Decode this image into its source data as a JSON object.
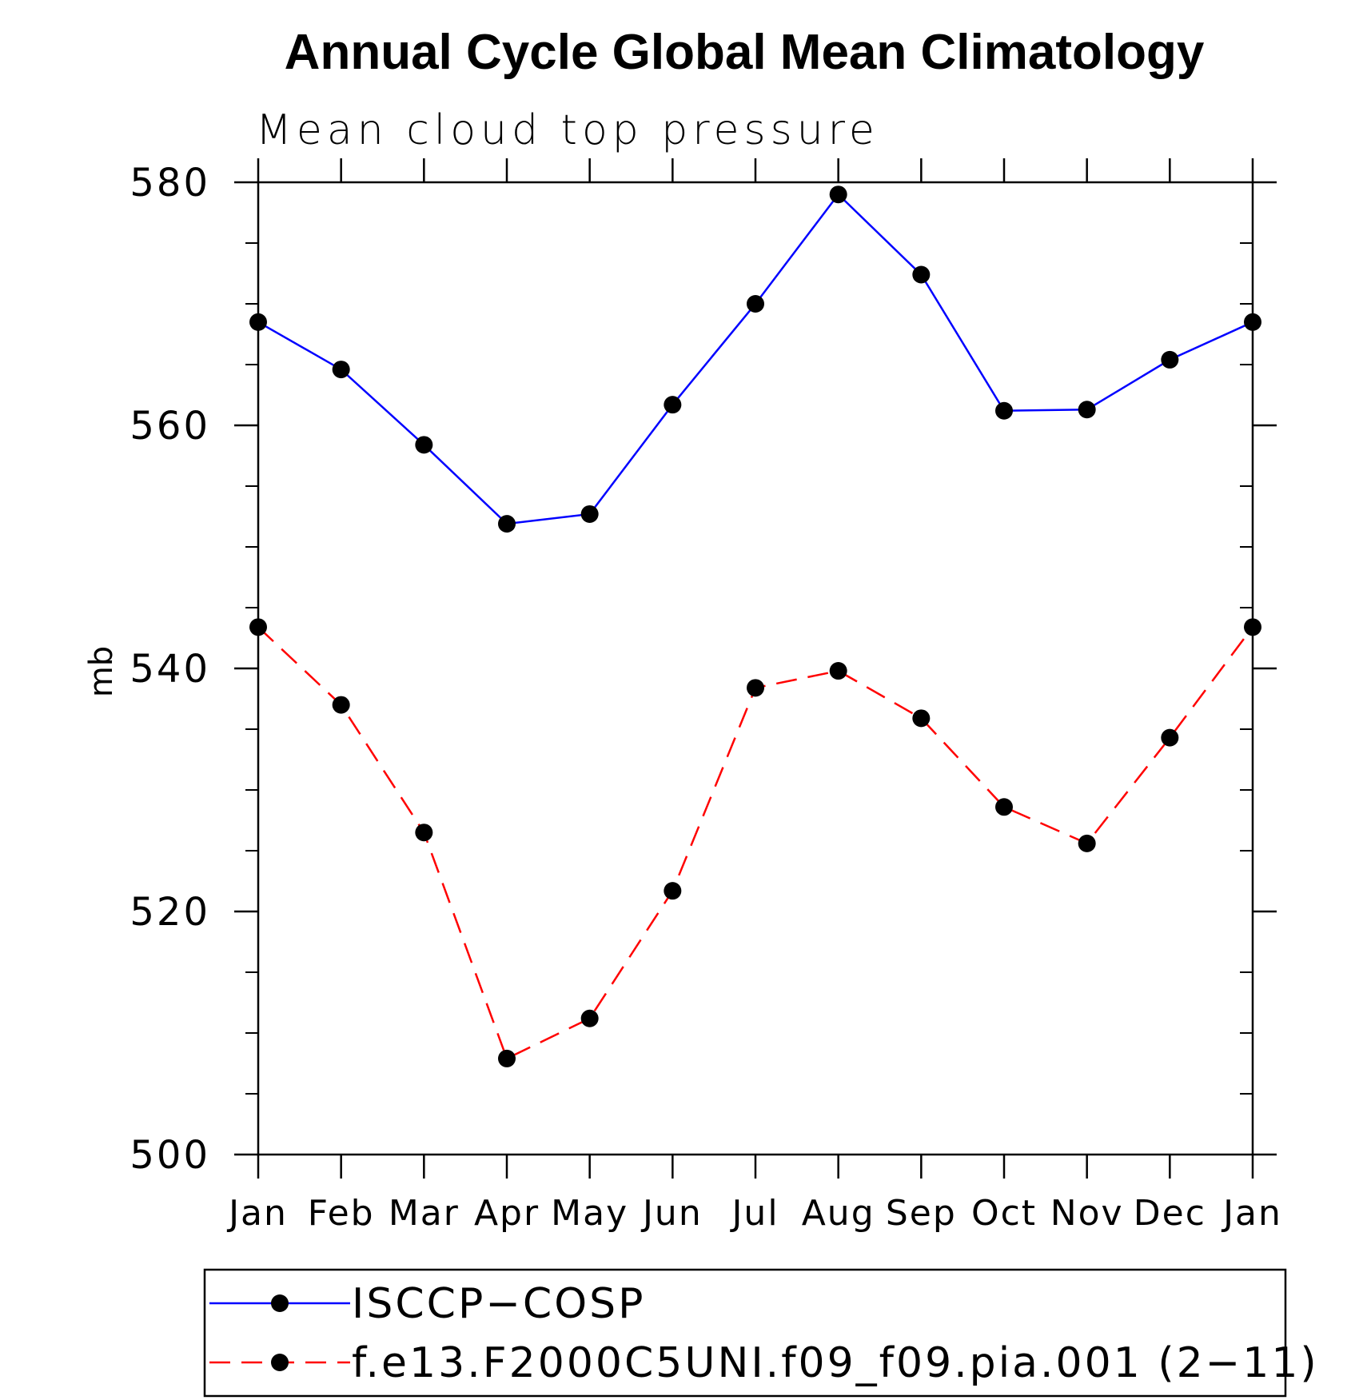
{
  "chart_data": {
    "type": "line",
    "title": "Annual Cycle Global Mean Climatology",
    "subtitle": "Mean cloud top pressure",
    "xlabel": "",
    "ylabel": "mb",
    "ylim": [
      500,
      580
    ],
    "yticks": [
      500,
      520,
      540,
      560,
      580
    ],
    "y_minor_step": 5,
    "categories": [
      "Jan",
      "Feb",
      "Mar",
      "Apr",
      "May",
      "Jun",
      "Jul",
      "Aug",
      "Sep",
      "Oct",
      "Nov",
      "Dec",
      "Jan"
    ],
    "grid": false,
    "legend_position": "bottom",
    "series": [
      {
        "name": "ISCCP−COSP",
        "color": "#0000ff",
        "line_style": "solid",
        "marker": "filled-circle",
        "values": [
          568.5,
          564.6,
          558.4,
          551.9,
          552.7,
          561.7,
          570.0,
          579.0,
          572.4,
          561.2,
          561.3,
          565.4,
          568.5
        ]
      },
      {
        "name": "f.e13.F2000C5UNI.f09_f09.pia.001 (2−11)",
        "color": "#ff0000",
        "line_style": "dashed",
        "marker": "filled-circle",
        "values": [
          543.4,
          537.0,
          526.5,
          507.9,
          511.2,
          521.7,
          538.4,
          539.8,
          535.9,
          528.6,
          525.6,
          534.3,
          543.4
        ]
      }
    ]
  }
}
